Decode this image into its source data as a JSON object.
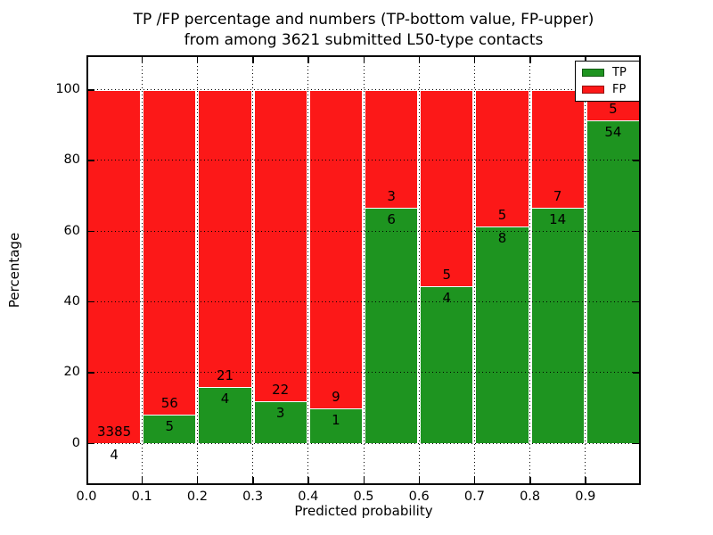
{
  "chart_data": {
    "type": "bar",
    "variant": "stacked-percentage-histogram",
    "title_lines": [
      "TP /FP percentage and numbers (TP-bottom value, FP-upper)",
      "from among 3621 submitted L50-type contacts"
    ],
    "xlabel": "Predicted probability",
    "ylabel": "Percentage",
    "total_contacts_in_title": 3621,
    "bin_edges": [
      0.0,
      0.1,
      0.2,
      0.3,
      0.4,
      0.5,
      0.6,
      0.7,
      0.8,
      0.9,
      1.0
    ],
    "xtick_labels": [
      "0.0",
      "0.1",
      "0.2",
      "0.3",
      "0.4",
      "0.5",
      "0.6",
      "0.7",
      "0.8",
      "0.9"
    ],
    "ytick_values": [
      0,
      20,
      40,
      60,
      80,
      100
    ],
    "ytick_labels": [
      "0",
      "20",
      "40",
      "60",
      "80",
      "100"
    ],
    "ylim": [
      -11.7,
      109.9
    ],
    "xlim": [
      0.0,
      1.0
    ],
    "grid": "dotted black, horizontal lines drawn over bars, vertical lines visible in bar gaps",
    "legend_position": "upper right",
    "series": [
      {
        "name": "TP",
        "color": "#1e9420",
        "counts": [
          4,
          5,
          4,
          3,
          1,
          6,
          4,
          8,
          14,
          54
        ],
        "percent": [
          0.118,
          8.197,
          16.0,
          12.0,
          10.0,
          66.667,
          44.444,
          61.538,
          66.667,
          91.525
        ]
      },
      {
        "name": "FP",
        "color": "#fc1818",
        "counts": [
          3385,
          56,
          21,
          22,
          9,
          3,
          5,
          5,
          7,
          5
        ],
        "percent": [
          99.882,
          91.803,
          84.0,
          88.0,
          90.0,
          33.333,
          55.556,
          38.462,
          33.333,
          8.475
        ]
      }
    ],
    "bar_label_rule": "TP count printed just below the TP/FP boundary, FP count just above it"
  },
  "legend": {
    "entries": [
      {
        "label": "TP",
        "color": "#1e9420"
      },
      {
        "label": "FP",
        "color": "#fc1818"
      }
    ]
  }
}
